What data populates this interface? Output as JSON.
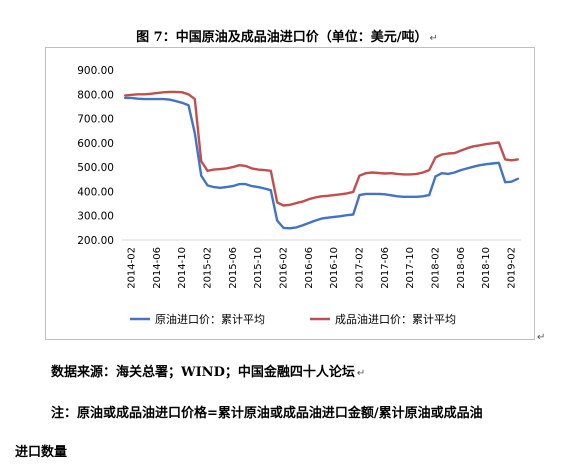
{
  "document": {
    "figure_title": "图 7：中国原油及成品油进口价（单位：美元/吨）",
    "paragraph_mark": "↵",
    "source_line": "数据来源：海关总署；WIND；中国金融四十人论坛",
    "note_line1": "注：原油或成品油进口价格=累计原油或成品油进口金额/累计原油或成品油",
    "note_line2": "进口数量"
  },
  "chart_data": {
    "type": "line",
    "title": "",
    "xlabel": "",
    "ylabel": "",
    "ylim": [
      200,
      900
    ],
    "yticks": [
      200,
      300,
      400,
      500,
      600,
      700,
      800,
      900
    ],
    "ytick_labels": [
      "200.00",
      "300.00",
      "400.00",
      "500.00",
      "600.00",
      "700.00",
      "800.00",
      "900.00"
    ],
    "grid": false,
    "legend_position": "bottom",
    "x": [
      "2014-01",
      "2014-02",
      "2014-03",
      "2014-04",
      "2014-05",
      "2014-06",
      "2014-07",
      "2014-08",
      "2014-09",
      "2014-10",
      "2014-11",
      "2014-12",
      "2015-01",
      "2015-02",
      "2015-03",
      "2015-04",
      "2015-05",
      "2015-06",
      "2015-07",
      "2015-08",
      "2015-09",
      "2015-10",
      "2015-11",
      "2015-12",
      "2016-01",
      "2016-02",
      "2016-03",
      "2016-04",
      "2016-05",
      "2016-06",
      "2016-07",
      "2016-08",
      "2016-09",
      "2016-10",
      "2016-11",
      "2016-12",
      "2017-01",
      "2017-02",
      "2017-03",
      "2017-04",
      "2017-05",
      "2017-06",
      "2017-07",
      "2017-08",
      "2017-09",
      "2017-10",
      "2017-11",
      "2017-12",
      "2018-01",
      "2018-02",
      "2018-03",
      "2018-04",
      "2018-05",
      "2018-06",
      "2018-07",
      "2018-08",
      "2018-09",
      "2018-10",
      "2018-11",
      "2018-12",
      "2019-01",
      "2019-02",
      "2019-03"
    ],
    "tick_labels": [
      "2014-02",
      "2014-06",
      "2014-10",
      "2015-02",
      "2015-06",
      "2015-10",
      "2016-02",
      "2016-06",
      "2016-10",
      "2017-02",
      "2017-06",
      "2017-10",
      "2018-02",
      "2018-06",
      "2018-10",
      "2019-02"
    ],
    "series": [
      {
        "name": "原油进口价：累计平均",
        "color": "#4472c4",
        "values": [
          785,
          785,
          782,
          780,
          780,
          780,
          780,
          778,
          772,
          765,
          755,
          640,
          465,
          425,
          418,
          415,
          418,
          422,
          430,
          430,
          422,
          418,
          412,
          405,
          280,
          250,
          248,
          252,
          260,
          270,
          280,
          288,
          292,
          295,
          298,
          302,
          305,
          385,
          390,
          390,
          390,
          388,
          384,
          380,
          378,
          378,
          378,
          380,
          385,
          462,
          475,
          472,
          478,
          488,
          495,
          502,
          508,
          512,
          515,
          518,
          438,
          440,
          452
        ]
      },
      {
        "name": "成品油进口价：累计平均",
        "color": "#c0504d",
        "values": [
          795,
          798,
          800,
          800,
          802,
          805,
          808,
          810,
          810,
          808,
          800,
          780,
          525,
          485,
          490,
          492,
          495,
          500,
          508,
          505,
          495,
          490,
          488,
          485,
          355,
          342,
          345,
          352,
          358,
          368,
          375,
          380,
          382,
          385,
          388,
          392,
          398,
          465,
          475,
          478,
          476,
          474,
          475,
          472,
          470,
          470,
          472,
          478,
          488,
          540,
          552,
          556,
          558,
          568,
          578,
          586,
          590,
          595,
          598,
          602,
          532,
          528,
          532
        ]
      }
    ]
  }
}
